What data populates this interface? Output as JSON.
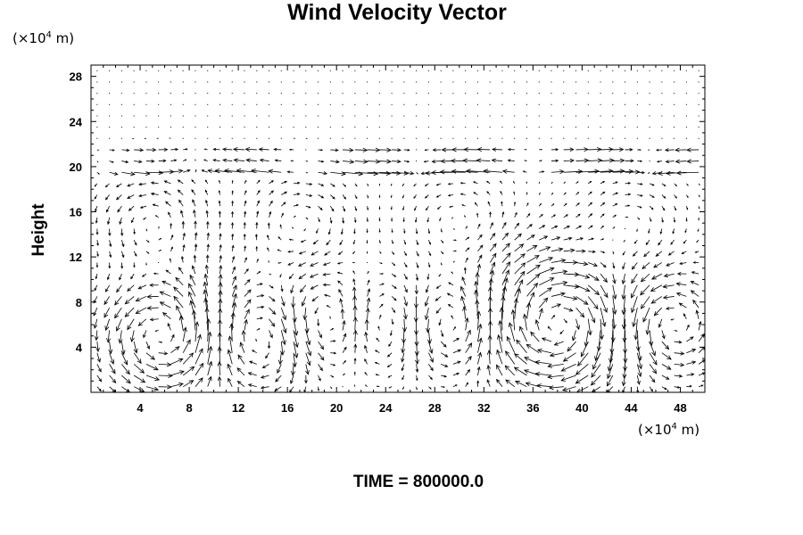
{
  "chart_data": {
    "type": "vector-field",
    "title": "Wind Velocity Vector",
    "ylabel": "Height",
    "xunit_prefix": "(×10",
    "xunit_exp": "4",
    "xunit_suffix": " m)",
    "yunit_prefix": "(×10",
    "yunit_exp": "4",
    "yunit_suffix": " m)",
    "time_label": "TIME = 800000.0",
    "xlim": [
      0,
      50
    ],
    "ylim": [
      0,
      29
    ],
    "xticks": [
      4,
      8,
      12,
      16,
      20,
      24,
      28,
      32,
      36,
      40,
      44,
      48
    ],
    "yticks": [
      4,
      8,
      12,
      16,
      20,
      24,
      28
    ],
    "grid": false,
    "field": {
      "x_start": 0.5,
      "x_step": 1,
      "x_count": 50,
      "y_start": 0.5,
      "y_step": 1,
      "y_count": 29,
      "vortices": [
        {
          "x": 6,
          "y": 5,
          "strength": 1.0,
          "radius": 3.5
        },
        {
          "x": 14,
          "y": 5,
          "strength": -0.8,
          "radius": 3.5
        },
        {
          "x": 19,
          "y": 6,
          "strength": 0.9,
          "radius": 3
        },
        {
          "x": 24,
          "y": 6,
          "strength": -0.8,
          "radius": 3
        },
        {
          "x": 29,
          "y": 6,
          "strength": 0.9,
          "radius": 3
        },
        {
          "x": 38,
          "y": 6,
          "strength": -1.0,
          "radius": 4
        },
        {
          "x": 47,
          "y": 6,
          "strength": 0.9,
          "radius": 3
        },
        {
          "x": 5,
          "y": 15,
          "strength": 0.6,
          "radius": 3
        },
        {
          "x": 17,
          "y": 15,
          "strength": -0.5,
          "radius": 3
        },
        {
          "x": 30,
          "y": 15,
          "strength": 0.4,
          "radius": 3
        },
        {
          "x": 44,
          "y": 15,
          "strength": -0.4,
          "radius": 3
        }
      ],
      "upper_band": {
        "y_min": 19,
        "y_max": 22
      },
      "calm_above": 23
    }
  }
}
